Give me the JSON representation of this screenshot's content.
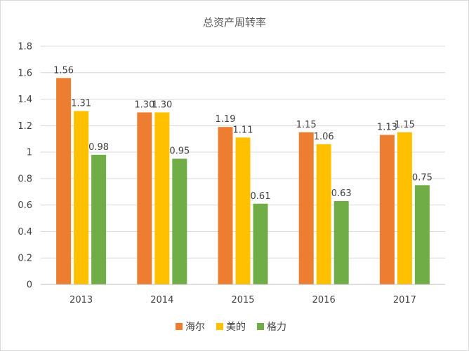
{
  "chart_data": {
    "type": "bar",
    "title": "总资产周转率",
    "categories": [
      "2013",
      "2014",
      "2015",
      "2016",
      "2017"
    ],
    "series": [
      {
        "name": "海尔",
        "color": "#ED7D31",
        "values": [
          1.56,
          1.3,
          1.19,
          1.15,
          1.13
        ],
        "labels": [
          "1.56",
          "1.30",
          "1.19",
          "1.15",
          "1.13"
        ]
      },
      {
        "name": "美的",
        "color": "#FFC000",
        "values": [
          1.31,
          1.3,
          1.11,
          1.06,
          1.15
        ],
        "labels": [
          "1.31",
          "1.30",
          "1.11",
          "1.06",
          "1.15"
        ]
      },
      {
        "name": "格力",
        "color": "#70AD47",
        "values": [
          0.98,
          0.95,
          0.61,
          0.63,
          0.75
        ],
        "labels": [
          "0.98",
          "0.95",
          "0.61",
          "0.63",
          "0.75"
        ]
      }
    ],
    "y_ticks": [
      "0",
      "0.2",
      "0.4",
      "0.6",
      "0.8",
      "1",
      "1.2",
      "1.4",
      "1.6",
      "1.8"
    ],
    "ylim": [
      0,
      1.8
    ],
    "grid": true,
    "legend_position": "bottom"
  }
}
